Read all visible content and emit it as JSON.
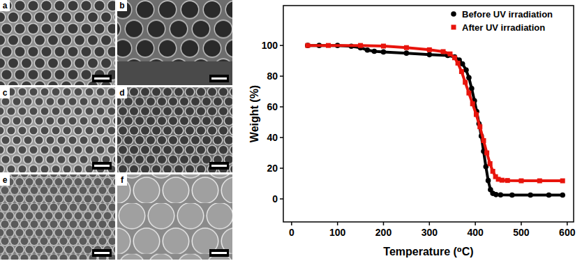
{
  "chart_data": {
    "type": "line",
    "x_label": "Temperature (⁰C)",
    "y_label": "Weight (%)",
    "xlim": [
      -18,
      614
    ],
    "ylim": [
      -15,
      126
    ],
    "xticks": [
      0,
      100,
      200,
      300,
      400,
      500,
      600
    ],
    "yticks": [
      0,
      20,
      40,
      60,
      80,
      100
    ],
    "legend": "top-right",
    "grid": false,
    "series": [
      {
        "name": "Before UV irradiation",
        "color": "#000000",
        "marker": "circle",
        "line_style": "solid",
        "x": [
          35,
          60,
          100,
          130,
          150,
          165,
          180,
          200,
          250,
          300,
          340,
          355,
          365,
          372,
          380,
          386,
          392,
          398,
          403,
          408,
          413,
          418,
          423,
          428,
          433,
          438,
          445,
          455,
          480,
          520,
          560,
          590
        ],
        "values": [
          100,
          100,
          100,
          99.5,
          98.5,
          97,
          96.2,
          95.8,
          95,
          94,
          93.5,
          92.5,
          90.5,
          88,
          84,
          79,
          72,
          64,
          57,
          49,
          41,
          31,
          21,
          12,
          6,
          3.6,
          2.8,
          2.6,
          2.5,
          2.5,
          2.5,
          2.5
        ]
      },
      {
        "name": "After UV irradiation",
        "color": "#e8140c",
        "marker": "square",
        "line_style": "solid",
        "x": [
          35,
          80,
          150,
          200,
          250,
          300,
          330,
          345,
          355,
          362,
          370,
          378,
          386,
          394,
          402,
          410,
          418,
          425,
          432,
          438,
          444,
          450,
          458,
          470,
          500,
          540,
          590
        ],
        "values": [
          100,
          100,
          100,
          99.6,
          98.6,
          97.2,
          96,
          94.5,
          92,
          88.5,
          83,
          76,
          69,
          62,
          55,
          47,
          38,
          30,
          23,
          18,
          14.5,
          12.8,
          12.2,
          12,
          11.8,
          11.8,
          11.8
        ]
      }
    ]
  },
  "micrographs": {
    "panels": [
      {
        "label": "a"
      },
      {
        "label": "b"
      },
      {
        "label": "c"
      },
      {
        "label": "d"
      },
      {
        "label": "e"
      },
      {
        "label": "f"
      }
    ]
  }
}
